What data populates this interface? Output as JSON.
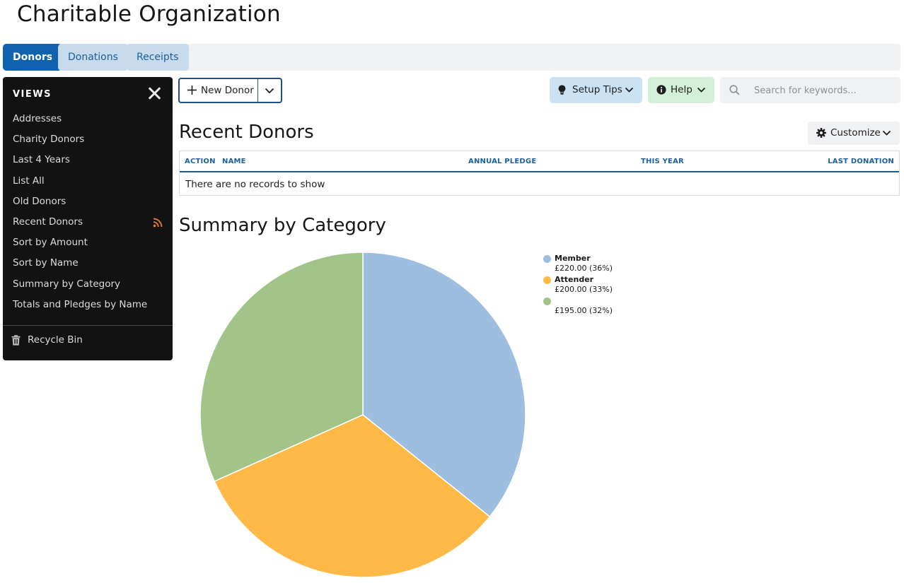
{
  "app": {
    "title": "Charitable Organization"
  },
  "tabs": [
    {
      "label": "Donors",
      "active": true
    },
    {
      "label": "Donations",
      "active": false
    },
    {
      "label": "Receipts",
      "active": false
    }
  ],
  "sidebar": {
    "title": "VIEWS",
    "items": [
      {
        "label": "Addresses"
      },
      {
        "label": "Charity Donors"
      },
      {
        "label": "Last 4 Years"
      },
      {
        "label": "List All"
      },
      {
        "label": "Old Donors"
      },
      {
        "label": "Recent Donors",
        "icon": "rss-feed-icon"
      },
      {
        "label": "Sort by Amount"
      },
      {
        "label": "Sort by Name"
      },
      {
        "label": "Summary by Category"
      },
      {
        "label": "Totals and Pledges by Name"
      }
    ],
    "recycle_bin": "Recycle Bin"
  },
  "toolbar": {
    "new_donor_label": "New Donor",
    "setup_tips_label": "Setup Tips",
    "help_label": "Help",
    "search_placeholder": "Search for keywords..."
  },
  "recent_donors": {
    "title": "Recent Donors",
    "customize_label": "Customize",
    "columns": [
      "ACTION",
      "NAME",
      "ANNUAL PLEDGE",
      "THIS YEAR",
      "LAST DONATION"
    ],
    "empty_message": "There are no records to show"
  },
  "summary": {
    "title": "Summary by Category"
  },
  "chart_data": {
    "type": "pie",
    "title": "",
    "slices": [
      {
        "label": "Member",
        "value": 220.0,
        "display": "£220.00 (36%)",
        "color": "#9dbedf"
      },
      {
        "label": "Attender",
        "value": 200.0,
        "display": "£200.00 (33%)",
        "color": "#ffb946"
      },
      {
        "label": "",
        "value": 195.0,
        "display": "£195.00 (32%)",
        "color": "#a3c488"
      }
    ],
    "legend_position": "right"
  },
  "colors": {
    "tab_active": "#0f62ae",
    "tab_inactive": "#c8dbec",
    "sidebar_bg": "#121212",
    "rss_icon": "#e8782e",
    "setup_tips_bg": "#cbe2f5",
    "help_bg": "#d2efd7"
  }
}
